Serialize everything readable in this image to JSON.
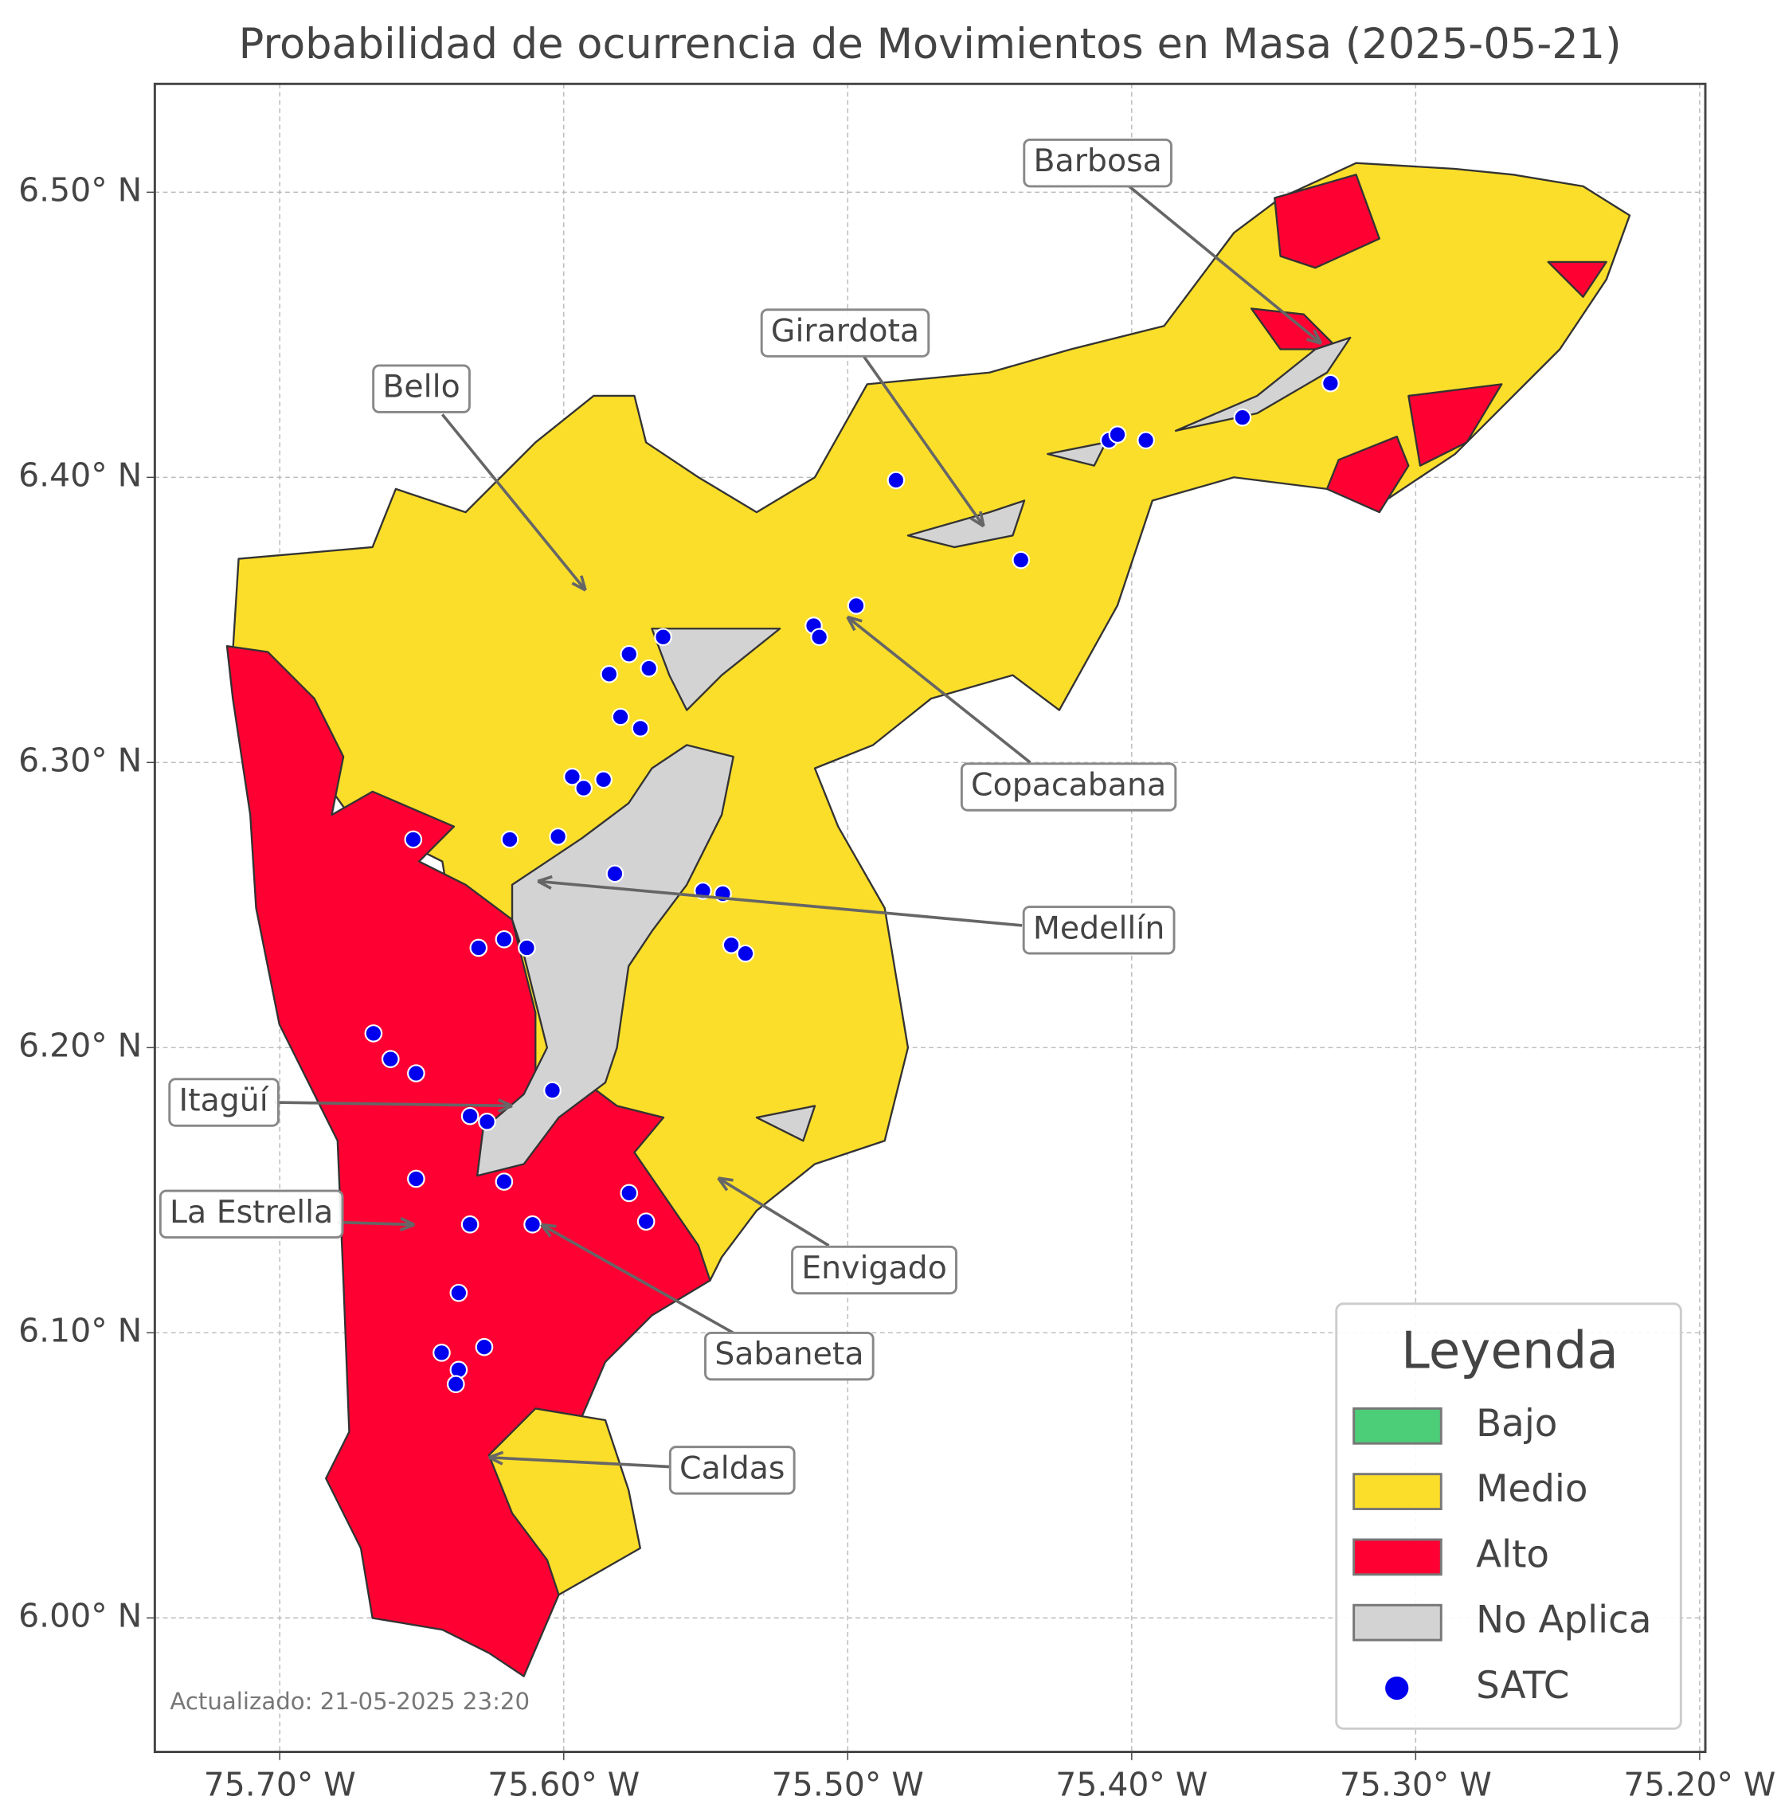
{
  "map": {
    "title": "Probabilidad de ocurrencia de Movimientos en Masa (2025-05-21)",
    "xlim": [
      -75.744,
      -75.198
    ],
    "ylim": [
      5.953,
      6.538
    ],
    "xticks": [
      {
        "value": -75.7,
        "label": "75.70° W"
      },
      {
        "value": -75.6,
        "label": "75.60° W"
      },
      {
        "value": -75.5,
        "label": "75.50° W"
      },
      {
        "value": -75.4,
        "label": "75.40° W"
      },
      {
        "value": -75.3,
        "label": "75.30° W"
      },
      {
        "value": -75.2,
        "label": "75.20° W"
      }
    ],
    "yticks": [
      {
        "value": 6.0,
        "label": "6.00° N"
      },
      {
        "value": 6.1,
        "label": "6.10° N"
      },
      {
        "value": 6.2,
        "label": "6.20° N"
      },
      {
        "value": 6.3,
        "label": "6.30° N"
      },
      {
        "value": 6.4,
        "label": "6.40° N"
      },
      {
        "value": 6.5,
        "label": "6.50° N"
      }
    ],
    "grid": true,
    "annotations": [
      "Barbosa",
      "Girardota",
      "Bello",
      "Copacabana",
      "Medellín",
      "Itagüí",
      "La Estrella",
      "Envigado",
      "Sabaneta",
      "Caldas"
    ],
    "legend": {
      "title": "Leyenda",
      "corner": "lower right",
      "items": [
        {
          "name": "Bajo",
          "color": "#4ccd78"
        },
        {
          "name": "Medio",
          "color": "#fbde2a"
        },
        {
          "name": "Alto",
          "color": "#ff0033"
        },
        {
          "name": "No Aplica",
          "color": "#d3d3d3"
        },
        {
          "name": "SATC",
          "color": "#0000ee"
        }
      ]
    },
    "stations": {
      "lon": [
        -75.653,
        -75.667,
        -75.661,
        -75.652,
        -75.633,
        -75.627,
        -75.604,
        -75.652,
        -75.621,
        -75.633,
        -75.611,
        -75.577,
        -75.571,
        -75.637,
        -75.643,
        -75.628,
        -75.637,
        -75.638,
        -75.63,
        -75.621,
        -75.613,
        -75.619,
        -75.602,
        -75.597,
        -75.593,
        -75.586,
        -75.582,
        -75.58,
        -75.573,
        -75.584,
        -75.577,
        -75.57,
        -75.565,
        -75.551,
        -75.544,
        -75.541,
        -75.536,
        -75.512,
        -75.51,
        -75.497,
        -75.483,
        -75.439,
        -75.408,
        -75.405,
        -75.395,
        -75.361,
        -75.33
      ],
      "lat": [
        6.273,
        6.205,
        6.196,
        6.191,
        6.176,
        6.174,
        6.185,
        6.154,
        6.153,
        6.138,
        6.138,
        6.149,
        6.139,
        6.114,
        6.093,
        6.095,
        6.087,
        6.082,
        6.235,
        6.238,
        6.235,
        6.273,
        6.274,
        6.295,
        6.291,
        6.294,
        6.261,
        6.316,
        6.312,
        6.331,
        6.338,
        6.333,
        6.344,
        6.255,
        6.254,
        6.236,
        6.233,
        6.348,
        6.344,
        6.355,
        6.399,
        6.371,
        6.413,
        6.415,
        6.413,
        6.421,
        6.433
      ]
    },
    "footnote": "Actualizado: 21-05-2025 23:20"
  }
}
